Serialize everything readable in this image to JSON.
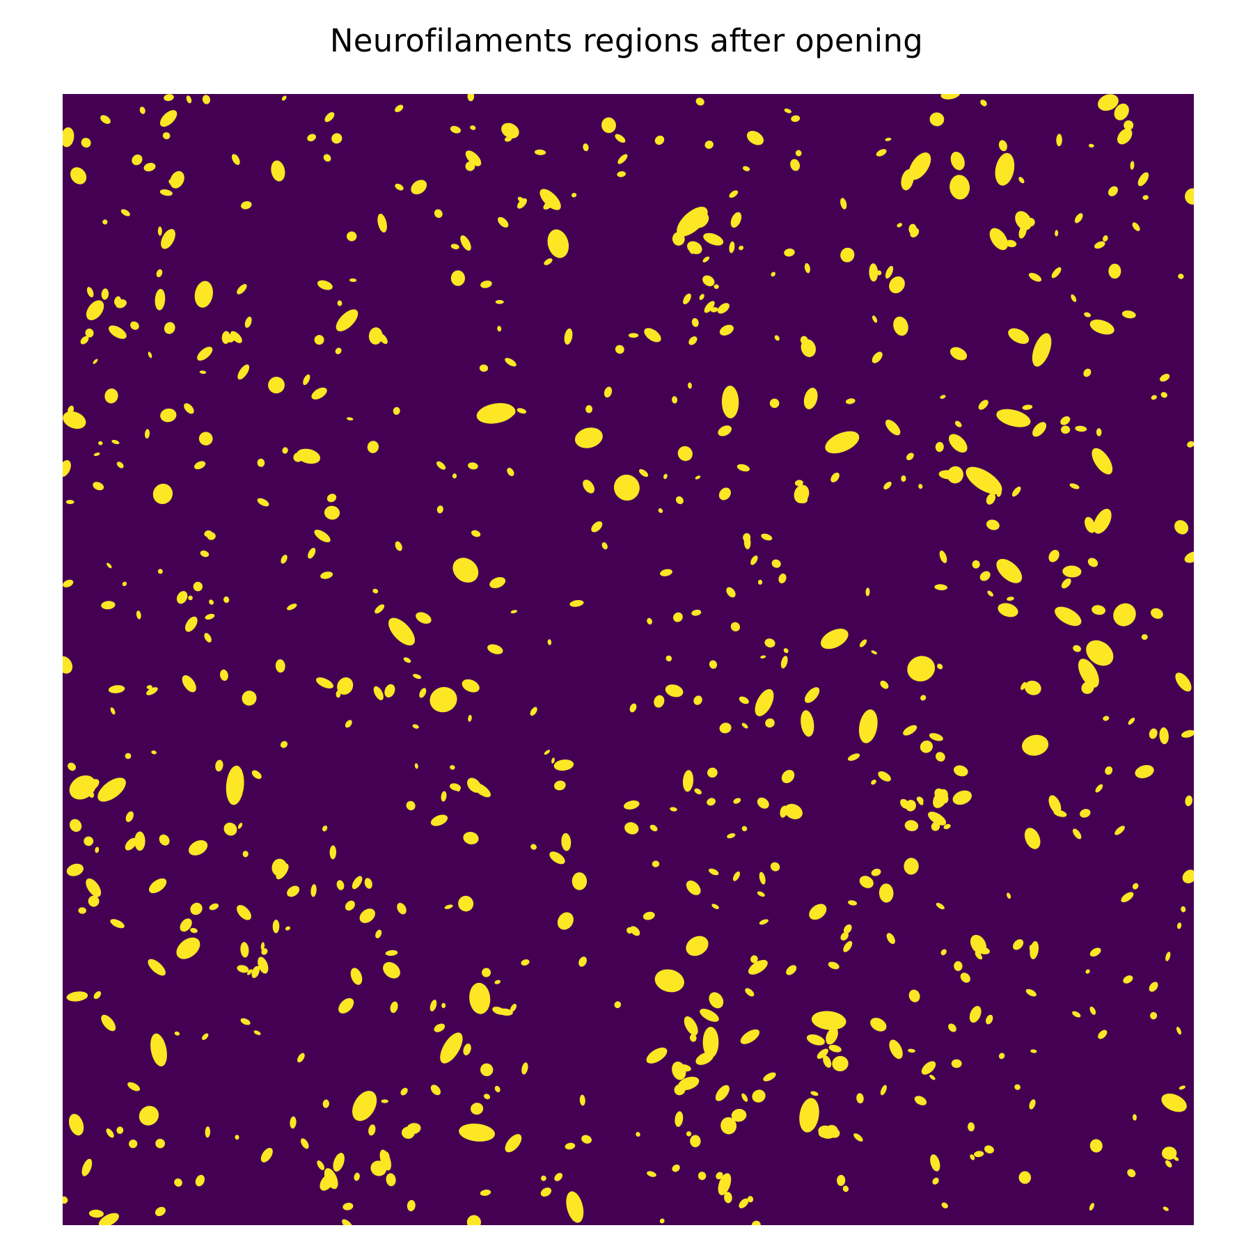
{
  "figure": {
    "title": "Neurofilaments regions after opening"
  },
  "image": {
    "description_kind": "binary mask",
    "colors": {
      "background": "#440154",
      "foreground": "#FDE725"
    },
    "seed": 20240531,
    "blob_count": 760
  }
}
